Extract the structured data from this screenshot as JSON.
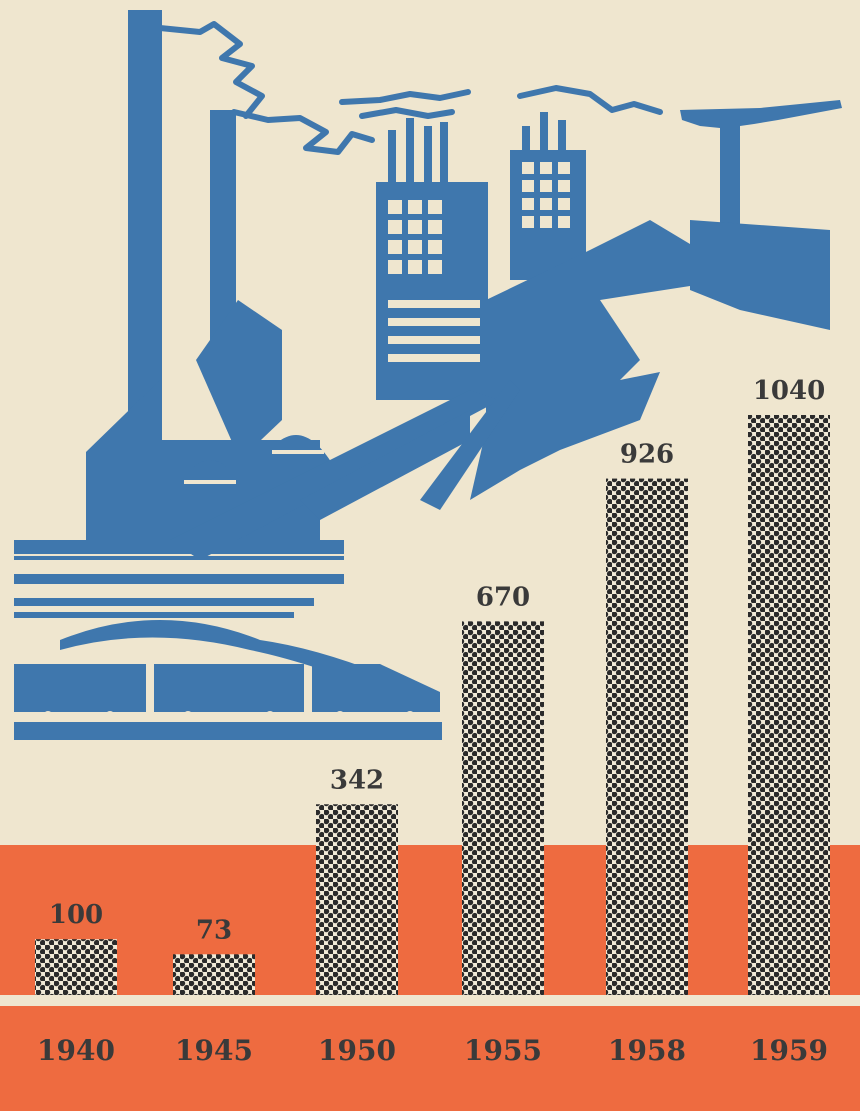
{
  "colors": {
    "background": "#efe6cf",
    "band": "#ee6b40",
    "illustration": "#3f77ad",
    "bar_dot": "#2a2a2a",
    "bar_fill": "#f1ead7",
    "label": "#3a3a3a"
  },
  "illustration": {
    "icon": "factory-power-station-icon"
  },
  "chart_data": {
    "type": "bar",
    "categories": [
      "1940",
      "1945",
      "1950",
      "1955",
      "1958",
      "1959"
    ],
    "values": [
      100,
      73,
      342,
      670,
      926,
      1040
    ],
    "data_labels": [
      "100",
      "73",
      "342",
      "670",
      "926",
      "1040"
    ],
    "ylim": [
      0,
      1040
    ],
    "grid": false,
    "legend": "none"
  }
}
